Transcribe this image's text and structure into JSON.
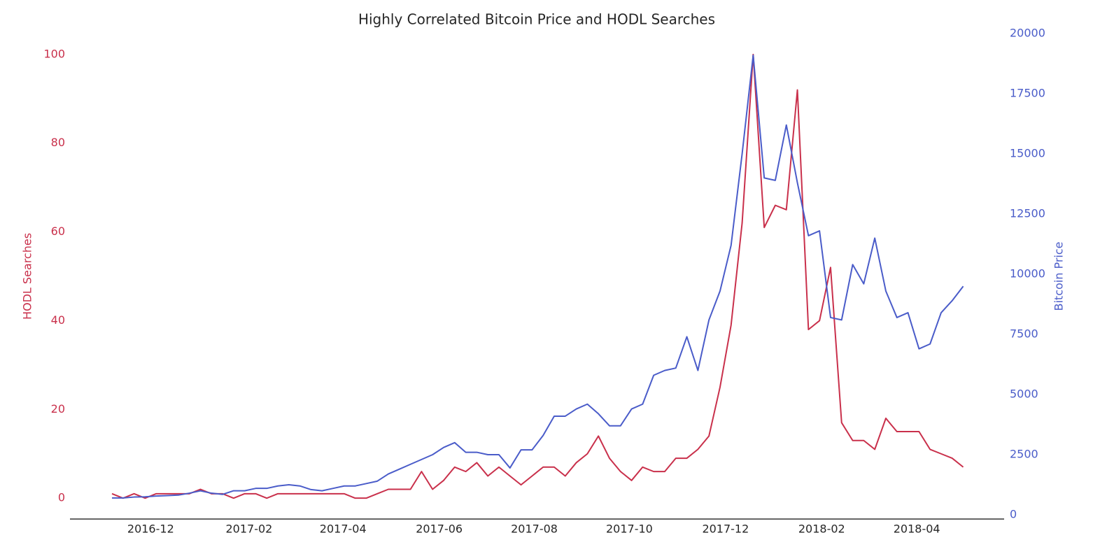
{
  "chart_data": {
    "type": "line",
    "title": "Highly Correlated Bitcoin Price and HODL Searches",
    "ylabel": "HODL Searches",
    "y2label": "Bitcoin Price",
    "xlim": [
      -3.8,
      80.7
    ],
    "xticks": [
      {
        "value": 3.5,
        "label": "2016-12"
      },
      {
        "value": 12.4,
        "label": "2017-02"
      },
      {
        "value": 20.9,
        "label": "2017-04"
      },
      {
        "value": 29.6,
        "label": "2017-06"
      },
      {
        "value": 38.2,
        "label": "2017-08"
      },
      {
        "value": 46.8,
        "label": "2017-10"
      },
      {
        "value": 55.5,
        "label": "2017-12"
      },
      {
        "value": 64.2,
        "label": "2018-02"
      },
      {
        "value": 72.8,
        "label": "2018-04"
      }
    ],
    "ylim": [
      -4.7,
      104.7
    ],
    "yticks": [
      0,
      20,
      40,
      60,
      80,
      100
    ],
    "y2lim": [
      -174,
      20000
    ],
    "y2ticks": [
      0,
      2500,
      5000,
      7500,
      10000,
      12500,
      15000,
      17500,
      20000
    ],
    "grid": false,
    "series": [
      {
        "color": "#c9304b",
        "axis": "y",
        "values": [
          1,
          0,
          1,
          0,
          1,
          1,
          1,
          1,
          2,
          1,
          1,
          0,
          1,
          1,
          0,
          1,
          1,
          1,
          1,
          1,
          1,
          1,
          0,
          0,
          1,
          2,
          2,
          2,
          6,
          2,
          4,
          7,
          6,
          8,
          5,
          7,
          5,
          3,
          5,
          7,
          7,
          5,
          8,
          10,
          14,
          9,
          6,
          4,
          7,
          6,
          6,
          9,
          9,
          11,
          14,
          25,
          39,
          62,
          100,
          61,
          66,
          65,
          92,
          38,
          40,
          52,
          17,
          13,
          13,
          11,
          18,
          15,
          15,
          15,
          11,
          10,
          9,
          7
        ]
      },
      {
        "color": "#4a5cc9",
        "axis": "y2",
        "values": [
          700,
          700,
          740,
          750,
          780,
          800,
          820,
          900,
          1000,
          900,
          850,
          1000,
          1000,
          1100,
          1100,
          1200,
          1250,
          1200,
          1050,
          1000,
          1100,
          1200,
          1200,
          1300,
          1400,
          1700,
          1900,
          2100,
          2300,
          2500,
          2800,
          3000,
          2600,
          2600,
          2500,
          2500,
          1950,
          2700,
          2700,
          3300,
          4100,
          4100,
          4400,
          4600,
          4200,
          3700,
          3700,
          4400,
          4600,
          5800,
          6000,
          6100,
          7400,
          6000,
          8100,
          9300,
          11200,
          15000,
          19100,
          14000,
          13900,
          16200,
          13800,
          11600,
          11800,
          8200,
          8100,
          10400,
          9600,
          11500,
          9300,
          8200,
          8400,
          6900,
          7100,
          8400,
          8900,
          9500
        ]
      }
    ]
  }
}
